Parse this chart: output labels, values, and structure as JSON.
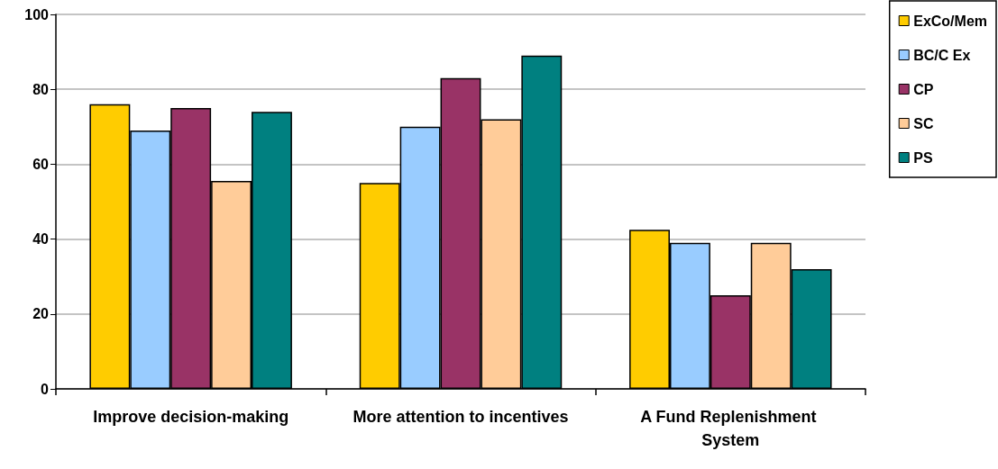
{
  "chart_data": {
    "type": "bar",
    "categories": [
      "Improve decision-making",
      "More attention to incentives",
      "A Fund Replenishment System"
    ],
    "series": [
      {
        "name": "ExCo/Mem",
        "color": "#ffcc00",
        "values": [
          76,
          55,
          42.5
        ]
      },
      {
        "name": "BC/C Ex",
        "color": "#99ccff",
        "values": [
          69,
          70,
          39
        ]
      },
      {
        "name": "CP",
        "color": "#993366",
        "values": [
          75,
          83,
          25
        ]
      },
      {
        "name": "SC",
        "color": "#ffcc99",
        "values": [
          55.5,
          72,
          39
        ]
      },
      {
        "name": "PS",
        "color": "#008080",
        "values": [
          74,
          89,
          32
        ]
      }
    ],
    "ylim": [
      0,
      100
    ],
    "yticks": [
      0,
      20,
      40,
      60,
      80,
      100
    ],
    "grid": "y",
    "legend": "top right"
  }
}
